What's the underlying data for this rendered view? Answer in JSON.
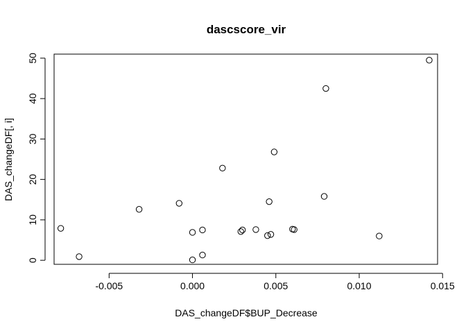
{
  "chart_data": {
    "type": "scatter",
    "title": "dascscore_vir",
    "xlabel": "DAS_changeDF$BUP_Decrease",
    "ylabel": "DAS_changeDF[, i]",
    "xlim": [
      -0.0083,
      0.0147
    ],
    "ylim": [
      -1.0,
      51.0
    ],
    "x_ticks": [
      -0.005,
      0.0,
      0.005,
      0.01,
      0.015
    ],
    "x_tick_labels": [
      "-0.005",
      "0.000",
      "0.005",
      "0.010",
      "0.015"
    ],
    "y_ticks": [
      0,
      10,
      20,
      30,
      40,
      50
    ],
    "y_tick_labels": [
      "0",
      "10",
      "20",
      "30",
      "40",
      "50"
    ],
    "grid": false,
    "marker": "open-circle",
    "points": [
      {
        "x": -0.0079,
        "y": 7.9
      },
      {
        "x": -0.0068,
        "y": 0.9
      },
      {
        "x": -0.0032,
        "y": 12.6
      },
      {
        "x": -0.0008,
        "y": 14.1
      },
      {
        "x": 0.0,
        "y": 6.9
      },
      {
        "x": 0.0,
        "y": 0.1
      },
      {
        "x": 0.0006,
        "y": 7.5
      },
      {
        "x": 0.0006,
        "y": 1.3
      },
      {
        "x": 0.0018,
        "y": 22.8
      },
      {
        "x": 0.0029,
        "y": 7.1
      },
      {
        "x": 0.003,
        "y": 7.5
      },
      {
        "x": 0.0038,
        "y": 7.6
      },
      {
        "x": 0.0045,
        "y": 6.1
      },
      {
        "x": 0.0046,
        "y": 14.5
      },
      {
        "x": 0.0047,
        "y": 6.4
      },
      {
        "x": 0.0049,
        "y": 26.8
      },
      {
        "x": 0.006,
        "y": 7.7
      },
      {
        "x": 0.0061,
        "y": 7.6
      },
      {
        "x": 0.0079,
        "y": 15.8
      },
      {
        "x": 0.008,
        "y": 42.5
      },
      {
        "x": 0.0112,
        "y": 6.0
      },
      {
        "x": 0.0142,
        "y": 49.5
      }
    ]
  }
}
